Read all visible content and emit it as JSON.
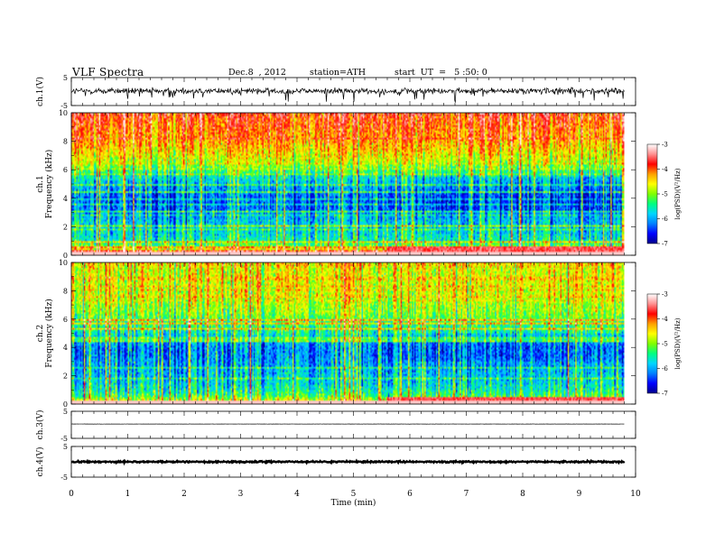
{
  "header": {
    "title": "VLF Spectra",
    "date": "Dec.8  , 2012",
    "station": "station=ATH",
    "start": "start  UT  =   5 :50: 0"
  },
  "chart_data": [
    {
      "type": "line",
      "ylabel": "ch.1(V)",
      "ylim": [
        -5,
        5
      ],
      "yticks": [
        "5",
        "-5"
      ],
      "x_range": [
        0,
        9.8
      ],
      "level": 0.2,
      "noise_amplitude": 1.6,
      "color": "#000000"
    },
    {
      "type": "heatmap",
      "ylabel": "ch.1\nFrequency (kHz)",
      "ylim": [
        0,
        10
      ],
      "yticks": [
        "0",
        "2",
        "4",
        "6",
        "8",
        "10"
      ],
      "x_range": [
        0,
        9.8
      ],
      "colorbar": {
        "label": "log(PSD)(V²/Hz)",
        "range": [
          -7,
          -3
        ],
        "ticks": [
          "-3",
          "-4",
          "-5",
          "-6",
          "-7"
        ]
      },
      "colormap": [
        "#00008b",
        "#0000ff",
        "#0080ff",
        "#00d5ff",
        "#00ff80",
        "#80ff00",
        "#ffff00",
        "#ffa000",
        "#ff0000",
        "#ff9090",
        "#ffffff"
      ],
      "profile_kHz": [
        0.3,
        0.6,
        1,
        1.5,
        2,
        2.5,
        3,
        3.5,
        4,
        4.5,
        5,
        5.5,
        6,
        6.5,
        7,
        7.5,
        8,
        8.5,
        9,
        9.5,
        9.95
      ],
      "profile_logPSD": [
        -4.2,
        -5.0,
        -5.5,
        -5.7,
        -5.8,
        -5.9,
        -6.1,
        -6.3,
        -6.3,
        -6.1,
        -5.9,
        -5.6,
        -5.2,
        -4.8,
        -4.6,
        -4.4,
        -4.2,
        -4.1,
        -4.0,
        -3.9,
        -3.8
      ],
      "dark_band_kHz": [
        3,
        5.5
      ],
      "red_band": {
        "kHz": 0.4,
        "from_min": 5.6
      },
      "step_change_min": 5.6
    },
    {
      "type": "heatmap",
      "ylabel": "ch.2\nFrequency (kHz)",
      "ylim": [
        0,
        10
      ],
      "yticks": [
        "0",
        "2",
        "4",
        "6",
        "8",
        "10"
      ],
      "x_range": [
        0,
        9.8
      ],
      "colorbar": {
        "label": "log(PSD)(V²/Hz)",
        "range": [
          -7,
          -3
        ],
        "ticks": [
          "-3",
          "-4",
          "-5",
          "-6",
          "-7"
        ]
      },
      "colormap": [
        "#00008b",
        "#0000ff",
        "#0080ff",
        "#00d5ff",
        "#00ff80",
        "#80ff00",
        "#ffff00",
        "#ffa000",
        "#ff0000",
        "#ff9090",
        "#ffffff"
      ],
      "profile_kHz": [
        0.3,
        0.6,
        1,
        1.5,
        2,
        2.5,
        3,
        3.5,
        4,
        4.5,
        5,
        5.5,
        6,
        6.5,
        7,
        7.5,
        8,
        8.5,
        9,
        9.5,
        9.95
      ],
      "profile_logPSD": [
        -4.8,
        -5.3,
        -5.6,
        -5.8,
        -5.9,
        -6.0,
        -6.1,
        -6.2,
        -6.2,
        -6.0,
        -5.6,
        -5.4,
        -5.2,
        -5.0,
        -4.9,
        -4.8,
        -4.75,
        -4.7,
        -4.7,
        -4.7,
        -4.7
      ],
      "dark_band_kHz": [
        3,
        5
      ],
      "red_band": {
        "kHz": 0.35,
        "from_min": 5.6
      },
      "step_change_min": 5.6
    },
    {
      "type": "line",
      "ylabel": "ch.3(V)",
      "ylim": [
        -5,
        5
      ],
      "yticks": [
        "5",
        "-5"
      ],
      "x_range": [
        0,
        9.8
      ],
      "level": 0.3,
      "noise_amplitude": 0.05,
      "color": "#000000"
    },
    {
      "type": "line",
      "ylabel": "ch.4(V)",
      "ylim": [
        -5,
        5
      ],
      "yticks": [
        "5",
        "-5"
      ],
      "x_range": [
        0,
        9.8
      ],
      "level": 0.0,
      "noise_amplitude": 0.35,
      "color": "#000000"
    }
  ],
  "x_axis": {
    "label": "Time  (min)",
    "range": [
      0,
      10
    ],
    "ticks": [
      "0",
      "1",
      "2",
      "3",
      "4",
      "5",
      "6",
      "7",
      "8",
      "9",
      "10"
    ]
  }
}
